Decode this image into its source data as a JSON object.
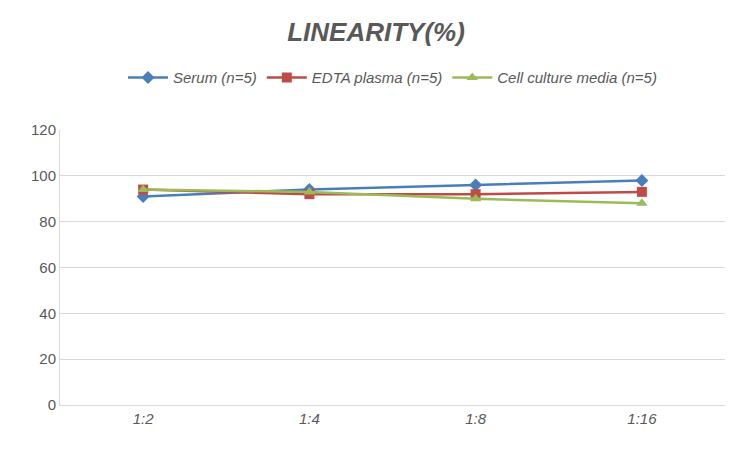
{
  "chart_data": {
    "type": "line",
    "title": "LINEARITY(%)",
    "categories": [
      "1:2",
      "1:4",
      "1:8",
      "1:16"
    ],
    "series": [
      {
        "name": "Serum (n=5)",
        "color": "#4a7ebb",
        "marker": "diamond",
        "values": [
          91,
          94,
          96,
          98
        ]
      },
      {
        "name": "EDTA plasma (n=5)",
        "color": "#be4b48",
        "marker": "square",
        "values": [
          94,
          92,
          92,
          93
        ]
      },
      {
        "name": "Cell culture media (n=5)",
        "color": "#9bbb59",
        "marker": "triangle",
        "values": [
          94,
          93,
          90,
          88
        ]
      }
    ],
    "ylim": [
      0,
      120
    ],
    "yticks": [
      0,
      20,
      40,
      60,
      80,
      100,
      120
    ],
    "grid": true,
    "legend": "top"
  }
}
